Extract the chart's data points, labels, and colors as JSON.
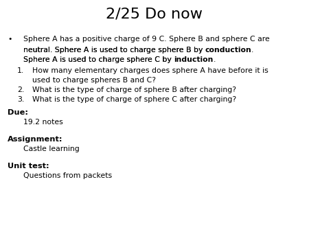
{
  "title": "2/25 Do now",
  "background_color": "#ffffff",
  "title_fontsize": 16,
  "body_fontsize": 7.8,
  "label_fontsize": 8.2,
  "line1": "Sphere A has a positive charge of 9 C. Sphere B and sphere C are",
  "line2_before": "neutral. Sphere A is used to charge sphere B by ",
  "line2_bold": "conduction",
  "line2_after": ".",
  "line3_before": "Sphere A is used to charge sphere C by ",
  "line3_bold": "induction",
  "line3_after": ".",
  "num1_line1": "How many elementary charges does sphere A have before it is",
  "num1_line2": "used to charge spheres B and C?",
  "num2": "What is the type of charge of sphere B after charging?",
  "num3": "What is the type of charge of sphere C after charging?",
  "due_label": "Due:",
  "due_value": "19.2 notes",
  "assignment_label": "Assignment:",
  "assignment_value": "Castle learning",
  "unit_label": "Unit test:",
  "unit_value": "Questions from packets"
}
